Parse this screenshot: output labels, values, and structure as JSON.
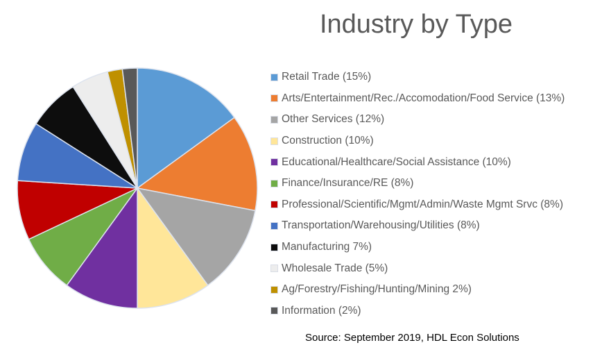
{
  "title": "Industry by Type",
  "source": "Source: September 2019, HDL Econ Solutions",
  "legend": [
    {
      "label": "Retail Trade (15%)",
      "color": "#5B9BD5"
    },
    {
      "label": "Arts/Entertainment/Rec./Accomodation/Food Service (13%)",
      "color": "#ED7D31"
    },
    {
      "label": "Other Services (12%)",
      "color": "#A5A5A5"
    },
    {
      "label": "Construction (10%)",
      "color": "#FFE699"
    },
    {
      "label": "Educational/Healthcare/Social Assistance (10%)",
      "color": "#7030A0"
    },
    {
      "label": "Finance/Insurance/RE (8%)",
      "color": "#70AD47"
    },
    {
      "label": "Professional/Scientific/Mgmt/Admin/Waste Mgmt Srvc (8%)",
      "color": "#C00000"
    },
    {
      "label": "Transportation/Warehousing/Utilities (8%)",
      "color": "#4472C4"
    },
    {
      "label": "Manufacturing 7%)",
      "color": "#0D0D0D"
    },
    {
      "label": "Wholesale Trade (5%)",
      "color": "#EDEDED"
    },
    {
      "label": "Ag/Forestry/Fishing/Hunting/Mining 2%)",
      "color": "#BF9000"
    },
    {
      "label": "Information (2%)",
      "color": "#595959"
    }
  ],
  "chart_data": {
    "type": "pie",
    "title": "Industry by Type",
    "categories": [
      "Retail Trade",
      "Arts/Entertainment/Rec./Accomodation/Food Service",
      "Other Services",
      "Construction",
      "Educational/Healthcare/Social Assistance",
      "Finance/Insurance/RE",
      "Professional/Scientific/Mgmt/Admin/Waste Mgmt Srvc",
      "Transportation/Warehousing/Utilities",
      "Manufacturing",
      "Wholesale Trade",
      "Ag/Forestry/Fishing/Hunting/Mining",
      "Information"
    ],
    "values": [
      15,
      13,
      12,
      10,
      10,
      8,
      8,
      8,
      7,
      5,
      2,
      2
    ],
    "units": "%",
    "colors": [
      "#5B9BD5",
      "#ED7D31",
      "#A5A5A5",
      "#FFE699",
      "#7030A0",
      "#70AD47",
      "#C00000",
      "#4472C4",
      "#0D0D0D",
      "#EDEDED",
      "#BF9000",
      "#595959"
    ],
    "legend_position": "right",
    "start_angle": "12 o'clock, clockwise",
    "annotation": "Source: September 2019, HDL Econ Solutions"
  }
}
